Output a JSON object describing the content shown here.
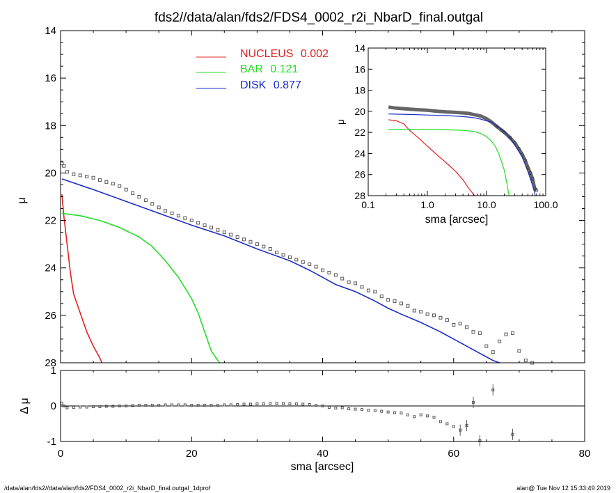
{
  "title": "fds2//data/alan/fds2/FDS4_0002_r2i_NbarD_final.outgal",
  "footer_left": "/data/alan/fds2//data/alan/fds2/FDS4_0002_r2i_NbarD_final.outgal_1dprof",
  "footer_right": "alan@  Tue Nov 12 15:33:49 2019",
  "colors": {
    "nucleus": "#e02020",
    "bar": "#22dd22",
    "disk": "#1a2cc8",
    "data": "#555555",
    "axis": "#000000"
  },
  "chart_data": [
    {
      "type": "line",
      "panel": "main",
      "xlabel": "sma [arcsec]",
      "ylabel": "μ",
      "xlim": [
        0,
        80
      ],
      "ylim": [
        28,
        14
      ],
      "x_ticks": [
        "0",
        "20",
        "40",
        "60",
        "80"
      ],
      "y_ticks": [
        "14",
        "16",
        "18",
        "20",
        "22",
        "24",
        "26",
        "28"
      ],
      "legend_position": "top-center",
      "legend": [
        {
          "label": "NUCLEUS",
          "value": "0.002",
          "color": "#e02020"
        },
        {
          "label": "BAR",
          "value": "0.121",
          "color": "#22dd22"
        },
        {
          "label": "DISK",
          "value": "0.877",
          "color": "#1a2cc8"
        }
      ],
      "series": [
        {
          "name": "NUCLEUS",
          "color": "#e02020",
          "points": [
            [
              0.2,
              20.9
            ],
            [
              0.5,
              21.8
            ],
            [
              1.0,
              23.0
            ],
            [
              1.5,
              24.2
            ],
            [
              2.0,
              25.1
            ],
            [
              3.0,
              25.9
            ],
            [
              4.0,
              26.7
            ],
            [
              5.0,
              27.3
            ],
            [
              6.0,
              27.8
            ],
            [
              6.3,
              28.0
            ]
          ]
        },
        {
          "name": "BAR",
          "color": "#22dd22",
          "points": [
            [
              0.2,
              21.7
            ],
            [
              3,
              21.8
            ],
            [
              6,
              22.0
            ],
            [
              9,
              22.3
            ],
            [
              12,
              22.7
            ],
            [
              14,
              23.1
            ],
            [
              16,
              23.7
            ],
            [
              18,
              24.4
            ],
            [
              20,
              25.3
            ],
            [
              21,
              25.9
            ],
            [
              22,
              26.7
            ],
            [
              23,
              27.5
            ],
            [
              24,
              27.9
            ],
            [
              24.3,
              28.0
            ]
          ]
        },
        {
          "name": "DISK",
          "color": "#1a2cc8",
          "points": [
            [
              0.2,
              20.25
            ],
            [
              5,
              20.7
            ],
            [
              10,
              21.2
            ],
            [
              15,
              21.7
            ],
            [
              20,
              22.2
            ],
            [
              25,
              22.65
            ],
            [
              30,
              23.2
            ],
            [
              35,
              23.7
            ],
            [
              38,
              24.1
            ],
            [
              40,
              24.4
            ],
            [
              42,
              24.7
            ],
            [
              45,
              25.0
            ],
            [
              48,
              25.4
            ],
            [
              50,
              25.7
            ],
            [
              52,
              25.95
            ],
            [
              55,
              26.3
            ],
            [
              58,
              26.7
            ],
            [
              60,
              27.0
            ],
            [
              62,
              27.3
            ],
            [
              64,
              27.6
            ],
            [
              66,
              27.9
            ],
            [
              67,
              28.0
            ]
          ]
        }
      ],
      "data_points": [
        [
          0.2,
          19.6
        ],
        [
          0.5,
          19.7
        ],
        [
          1,
          19.95
        ],
        [
          2,
          20.05
        ],
        [
          3,
          20.1
        ],
        [
          4,
          20.15
        ],
        [
          5,
          20.2
        ],
        [
          6,
          20.3
        ],
        [
          7,
          20.38
        ],
        [
          8,
          20.45
        ],
        [
          9,
          20.55
        ],
        [
          10,
          20.7
        ],
        [
          11,
          20.85
        ],
        [
          12,
          21.0
        ],
        [
          13,
          21.15
        ],
        [
          14,
          21.3
        ],
        [
          15,
          21.45
        ],
        [
          16,
          21.6
        ],
        [
          17,
          21.7
        ],
        [
          18,
          21.8
        ],
        [
          19,
          21.9
        ],
        [
          20,
          22.0
        ],
        [
          21,
          22.1
        ],
        [
          22,
          22.2
        ],
        [
          23,
          22.3
        ],
        [
          24,
          22.4
        ],
        [
          25,
          22.5
        ],
        [
          26,
          22.6
        ],
        [
          27,
          22.7
        ],
        [
          28,
          22.8
        ],
        [
          29,
          22.9
        ],
        [
          30,
          23.0
        ],
        [
          31,
          23.1
        ],
        [
          32,
          23.2
        ],
        [
          33,
          23.35
        ],
        [
          34,
          23.45
        ],
        [
          35,
          23.55
        ],
        [
          36,
          23.65
        ],
        [
          37,
          23.75
        ],
        [
          38,
          23.85
        ],
        [
          39,
          23.95
        ],
        [
          40,
          24.1
        ],
        [
          41,
          24.2
        ],
        [
          42,
          24.3
        ],
        [
          43,
          24.45
        ],
        [
          44,
          24.6
        ],
        [
          45,
          24.65
        ],
        [
          46,
          24.8
        ],
        [
          47,
          24.95
        ],
        [
          48,
          25.0
        ],
        [
          49,
          25.2
        ],
        [
          50,
          25.35
        ],
        [
          51,
          25.4
        ],
        [
          52,
          25.5
        ],
        [
          53,
          25.6
        ],
        [
          54,
          25.8
        ],
        [
          55,
          25.85
        ],
        [
          56,
          25.95
        ],
        [
          57,
          26.0
        ],
        [
          58,
          26.1
        ],
        [
          59,
          26.2
        ],
        [
          60,
          26.4
        ],
        [
          61,
          26.35
        ],
        [
          62,
          26.5
        ],
        [
          63,
          26.7
        ],
        [
          64,
          26.75
        ],
        [
          65,
          27.3
        ],
        [
          66,
          27.55
        ],
        [
          67,
          27.1
        ],
        [
          68,
          26.8
        ],
        [
          69,
          26.75
        ],
        [
          70,
          27.5
        ],
        [
          71,
          27.9
        ],
        [
          72,
          28.0
        ]
      ]
    },
    {
      "type": "scatter",
      "panel": "residual",
      "xlabel": "sma [arcsec]",
      "ylabel": "Δ μ",
      "xlim": [
        0,
        80
      ],
      "ylim": [
        -1,
        1
      ],
      "y_ticks": [
        "1",
        "0",
        "-1"
      ],
      "points": [
        [
          0.2,
          0.08
        ],
        [
          0.5,
          0.0
        ],
        [
          1,
          -0.05
        ],
        [
          2,
          -0.04
        ],
        [
          3,
          -0.03
        ],
        [
          4,
          -0.03
        ],
        [
          5,
          -0.02
        ],
        [
          6,
          -0.02
        ],
        [
          7,
          -0.01
        ],
        [
          8,
          -0.01
        ],
        [
          9,
          0.0
        ],
        [
          10,
          0.0
        ],
        [
          11,
          0.01
        ],
        [
          12,
          0.02
        ],
        [
          13,
          0.02
        ],
        [
          14,
          0.02
        ],
        [
          15,
          0.02
        ],
        [
          16,
          0.03
        ],
        [
          17,
          0.03
        ],
        [
          18,
          0.03
        ],
        [
          19,
          0.03
        ],
        [
          20,
          0.02
        ],
        [
          21,
          0.02
        ],
        [
          22,
          0.02
        ],
        [
          23,
          0.02
        ],
        [
          24,
          0.02
        ],
        [
          25,
          0.03
        ],
        [
          26,
          0.03
        ],
        [
          27,
          0.04
        ],
        [
          28,
          0.05
        ],
        [
          29,
          0.05
        ],
        [
          30,
          0.06
        ],
        [
          31,
          0.06
        ],
        [
          32,
          0.07
        ],
        [
          33,
          0.07
        ],
        [
          34,
          0.07
        ],
        [
          35,
          0.06
        ],
        [
          36,
          0.06
        ],
        [
          37,
          0.05
        ],
        [
          38,
          0.04
        ],
        [
          39,
          0.02
        ],
        [
          40,
          0.0
        ],
        [
          41,
          -0.04
        ],
        [
          42,
          -0.06
        ],
        [
          43,
          -0.05
        ],
        [
          44,
          -0.08
        ],
        [
          45,
          -0.09
        ],
        [
          46,
          -0.1
        ],
        [
          47,
          -0.12
        ],
        [
          48,
          -0.13
        ],
        [
          49,
          -0.15
        ],
        [
          50,
          -0.17
        ],
        [
          51,
          -0.19
        ],
        [
          52,
          -0.2
        ],
        [
          53,
          -0.25
        ],
        [
          54,
          -0.3
        ],
        [
          55,
          -0.25
        ],
        [
          56,
          -0.28
        ],
        [
          57,
          -0.32
        ],
        [
          58,
          -0.44
        ],
        [
          59,
          -0.5
        ],
        [
          60,
          -0.58
        ],
        [
          61,
          -0.68
        ],
        [
          62,
          -0.55
        ],
        [
          63,
          0.1
        ],
        [
          64,
          -0.98
        ],
        [
          66,
          0.45
        ],
        [
          69,
          -0.8
        ]
      ]
    },
    {
      "type": "line",
      "panel": "inset",
      "xlabel": "sma [arcsec]",
      "ylabel": "μ",
      "xscale": "log",
      "xlim": [
        0.1,
        100
      ],
      "ylim": [
        28,
        14
      ],
      "x_ticks": [
        "0.1",
        "1.0",
        "10.0",
        "100.0"
      ],
      "y_ticks": [
        "14",
        "16",
        "18",
        "20",
        "22",
        "24",
        "26",
        "28"
      ],
      "series": [
        {
          "name": "NUCLEUS",
          "color": "#e02020",
          "points": [
            [
              0.22,
              20.8
            ],
            [
              0.3,
              20.9
            ],
            [
              0.4,
              21.2
            ],
            [
              0.5,
              21.8
            ],
            [
              0.7,
              22.5
            ],
            [
              1.0,
              23.3
            ],
            [
              1.5,
              24.2
            ],
            [
              2,
              24.8
            ],
            [
              3,
              25.7
            ],
            [
              4,
              26.5
            ],
            [
              5,
              27.3
            ],
            [
              6.3,
              28.0
            ]
          ]
        },
        {
          "name": "BAR",
          "color": "#22dd22",
          "points": [
            [
              0.22,
              21.7
            ],
            [
              0.5,
              21.7
            ],
            [
              1,
              21.7
            ],
            [
              2,
              21.75
            ],
            [
              4,
              21.8
            ],
            [
              6,
              21.9
            ],
            [
              8,
              22.1
            ],
            [
              10,
              22.4
            ],
            [
              12,
              22.8
            ],
            [
              14,
              23.3
            ],
            [
              16,
              24.0
            ],
            [
              18,
              24.8
            ],
            [
              20,
              25.6
            ],
            [
              22,
              26.8
            ],
            [
              24,
              28.0
            ]
          ]
        },
        {
          "name": "DISK",
          "color": "#1a2cc8",
          "points": [
            [
              0.22,
              20.25
            ],
            [
              0.5,
              20.3
            ],
            [
              1,
              20.35
            ],
            [
              2,
              20.4
            ],
            [
              4,
              20.5
            ],
            [
              6,
              20.6
            ],
            [
              8,
              20.75
            ],
            [
              10,
              20.9
            ],
            [
              12,
              21.0
            ],
            [
              15,
              21.4
            ],
            [
              20,
              21.9
            ],
            [
              25,
              22.5
            ],
            [
              30,
              23.2
            ],
            [
              40,
              24.3
            ],
            [
              50,
              25.7
            ],
            [
              60,
              27.0
            ],
            [
              67,
              28.0
            ]
          ]
        }
      ],
      "data_points": [
        [
          0.22,
          19.6
        ],
        [
          0.3,
          19.7
        ],
        [
          0.4,
          19.75
        ],
        [
          0.5,
          19.8
        ],
        [
          0.7,
          19.85
        ],
        [
          1,
          19.9
        ],
        [
          1.5,
          20.0
        ],
        [
          2,
          20.05
        ],
        [
          3,
          20.1
        ],
        [
          4,
          20.15
        ],
        [
          5,
          20.2
        ],
        [
          6,
          20.3
        ],
        [
          7,
          20.38
        ],
        [
          8,
          20.45
        ],
        [
          10,
          20.7
        ],
        [
          12,
          21.0
        ],
        [
          15,
          21.45
        ],
        [
          18,
          21.8
        ],
        [
          20,
          22.0
        ],
        [
          25,
          22.5
        ],
        [
          30,
          23.0
        ],
        [
          35,
          23.55
        ],
        [
          40,
          24.1
        ],
        [
          45,
          24.65
        ],
        [
          50,
          25.35
        ],
        [
          55,
          25.85
        ],
        [
          60,
          26.4
        ],
        [
          65,
          27.3
        ],
        [
          70,
          27.5
        ]
      ]
    }
  ]
}
